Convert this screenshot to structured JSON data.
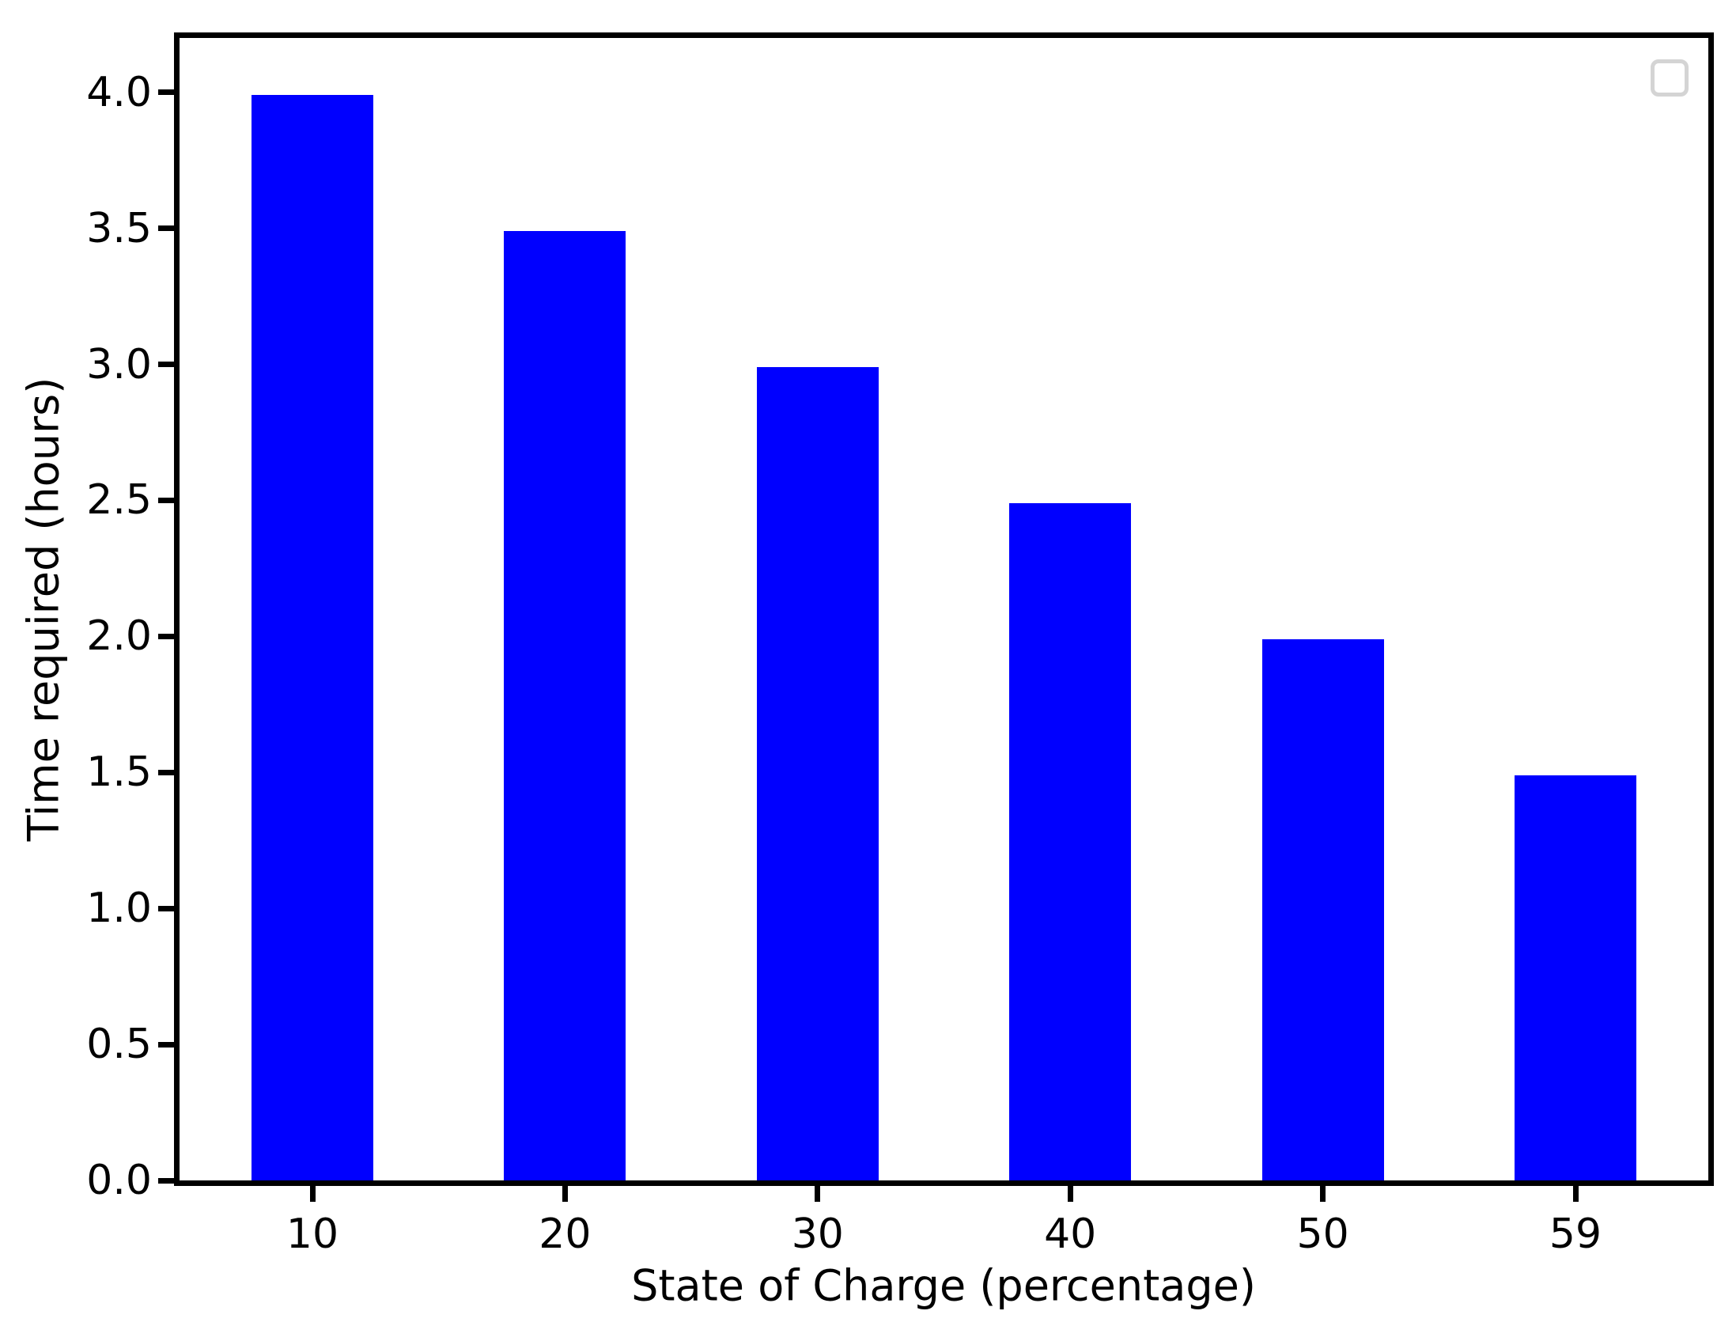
{
  "chart_data": {
    "type": "bar",
    "title": "",
    "xlabel": "State of Charge (percentage)",
    "ylabel": "Time required (hours)",
    "categories": [
      "10",
      "20",
      "30",
      "40",
      "50",
      "59"
    ],
    "values": [
      3.99,
      3.49,
      2.99,
      2.49,
      1.99,
      1.49
    ],
    "series_name": "",
    "y_ticks": [
      0.0,
      0.5,
      1.0,
      1.5,
      2.0,
      2.5,
      3.0,
      3.5,
      4.0
    ],
    "y_tick_labels": [
      "0.0",
      "0.5",
      "1.0",
      "1.5",
      "2.0",
      "2.5",
      "3.0",
      "3.5",
      "4.0"
    ],
    "ylim": [
      0,
      4.2
    ],
    "grid": false,
    "bar_color": "#0000ff",
    "spine_color": "#000000",
    "background_color": "#ffffff",
    "legend": {
      "visible": true,
      "entries": [],
      "position": "upper right",
      "frame_color": "#d4d4d4"
    }
  }
}
